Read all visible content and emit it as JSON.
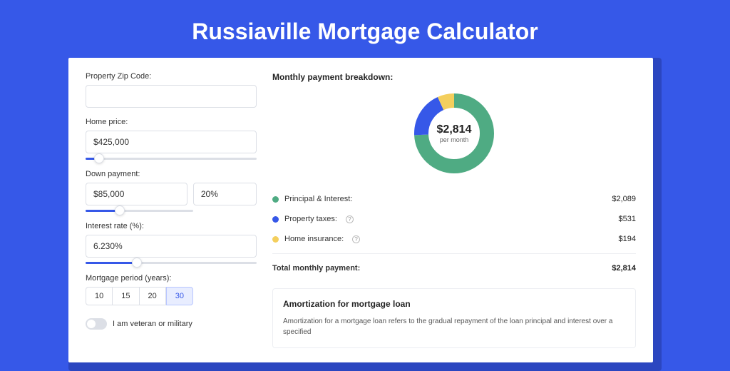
{
  "page": {
    "title": "Russiaville Mortgage Calculator",
    "background_color": "#3658e8",
    "card_shadow_color": "#2b46c0"
  },
  "form": {
    "zip": {
      "label": "Property Zip Code:",
      "value": ""
    },
    "home_price": {
      "label": "Home price:",
      "value": "$425,000",
      "slider_pct": 8
    },
    "down_payment": {
      "label": "Down payment:",
      "value": "$85,000",
      "pct_value": "20%",
      "slider_pct": 20
    },
    "interest_rate": {
      "label": "Interest rate (%):",
      "value": "6.230%",
      "slider_pct": 30
    },
    "period": {
      "label": "Mortgage period (years):",
      "options": [
        "10",
        "15",
        "20",
        "30"
      ],
      "selected": "30"
    },
    "veteran": {
      "label": "I am veteran or military",
      "checked": false
    }
  },
  "breakdown": {
    "title": "Monthly payment breakdown:",
    "center_value": "$2,814",
    "center_sub": "per month",
    "donut": {
      "radius": 46,
      "stroke_width": 20,
      "segments": [
        {
          "key": "principal_interest",
          "percent": 74.2,
          "color": "#4fab83"
        },
        {
          "key": "property_taxes",
          "percent": 18.9,
          "color": "#3658e8"
        },
        {
          "key": "home_insurance",
          "percent": 6.9,
          "color": "#f4cf5d"
        }
      ]
    },
    "rows": [
      {
        "label": "Principal & Interest:",
        "value": "$2,089",
        "color": "#4fab83",
        "help": false
      },
      {
        "label": "Property taxes:",
        "value": "$531",
        "color": "#3658e8",
        "help": true
      },
      {
        "label": "Home insurance:",
        "value": "$194",
        "color": "#f4cf5d",
        "help": true
      }
    ],
    "total": {
      "label": "Total monthly payment:",
      "value": "$2,814"
    }
  },
  "amortization": {
    "title": "Amortization for mortgage loan",
    "text": "Amortization for a mortgage loan refers to the gradual repayment of the loan principal and interest over a specified"
  }
}
